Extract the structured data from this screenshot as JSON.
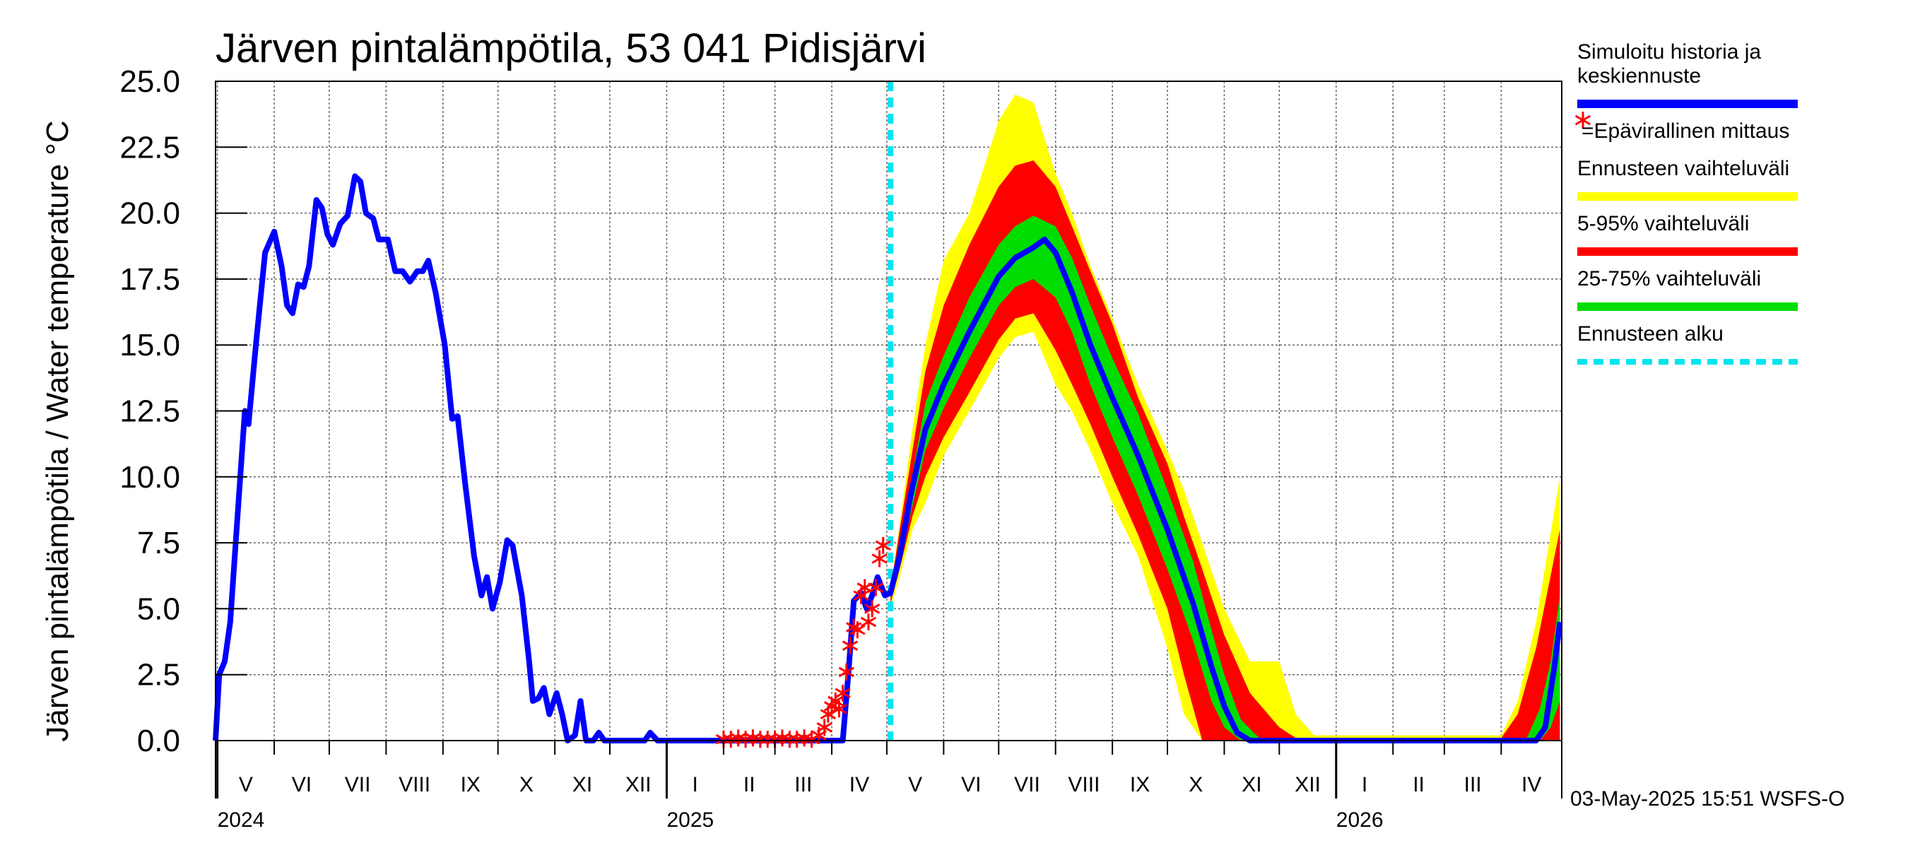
{
  "chart_data": {
    "type": "line",
    "title": "Järven pintalämpötila, 53 041 Pidisjärvi",
    "ylabel": "Järven pintalämpötila / Water temperature °C",
    "ylim": [
      0,
      25
    ],
    "yticks": [
      "0.0",
      "2.5",
      "5.0",
      "7.5",
      "10.0",
      "12.5",
      "15.0",
      "17.5",
      "20.0",
      "22.5",
      "25.0"
    ],
    "xlim": [
      "2024-04-30",
      "2026-05-04"
    ],
    "months": [
      {
        "label": "V",
        "start": "2024-05-01"
      },
      {
        "label": "VI",
        "start": "2024-06-01"
      },
      {
        "label": "VII",
        "start": "2024-07-01"
      },
      {
        "label": "VIII",
        "start": "2024-08-01"
      },
      {
        "label": "IX",
        "start": "2024-09-01"
      },
      {
        "label": "X",
        "start": "2024-10-01"
      },
      {
        "label": "XI",
        "start": "2024-11-01"
      },
      {
        "label": "XII",
        "start": "2024-12-01"
      },
      {
        "label": "I",
        "start": "2025-01-01"
      },
      {
        "label": "II",
        "start": "2025-02-01"
      },
      {
        "label": "III",
        "start": "2025-03-01"
      },
      {
        "label": "IV",
        "start": "2025-04-01"
      },
      {
        "label": "V",
        "start": "2025-05-01"
      },
      {
        "label": "VI",
        "start": "2025-06-01"
      },
      {
        "label": "VII",
        "start": "2025-07-01"
      },
      {
        "label": "VIII",
        "start": "2025-08-01"
      },
      {
        "label": "IX",
        "start": "2025-09-01"
      },
      {
        "label": "X",
        "start": "2025-10-01"
      },
      {
        "label": "XI",
        "start": "2025-11-01"
      },
      {
        "label": "XII",
        "start": "2025-12-01"
      },
      {
        "label": "I",
        "start": "2026-01-01"
      },
      {
        "label": "II",
        "start": "2026-02-01"
      },
      {
        "label": "III",
        "start": "2026-03-01"
      },
      {
        "label": "IV",
        "start": "2026-04-01"
      }
    ],
    "years": [
      {
        "label": "2024",
        "date": "2024-05-01"
      },
      {
        "label": "2025",
        "date": "2025-01-01"
      },
      {
        "label": "2026",
        "date": "2026-01-01"
      }
    ],
    "forecast_start": "2025-05-03",
    "series": [
      {
        "name": "Simuloitu historia ja keskiennuste",
        "color": "#0000ff",
        "points": [
          [
            "2024-04-30",
            0.0
          ],
          [
            "2024-05-02",
            2.5
          ],
          [
            "2024-05-05",
            3.0
          ],
          [
            "2024-05-08",
            4.5
          ],
          [
            "2024-05-12",
            8.5
          ],
          [
            "2024-05-16",
            12.5
          ],
          [
            "2024-05-18",
            12.0
          ],
          [
            "2024-05-22",
            15.0
          ],
          [
            "2024-05-27",
            18.5
          ],
          [
            "2024-06-01",
            19.3
          ],
          [
            "2024-06-05",
            18.0
          ],
          [
            "2024-06-08",
            16.5
          ],
          [
            "2024-06-11",
            16.2
          ],
          [
            "2024-06-14",
            17.3
          ],
          [
            "2024-06-17",
            17.2
          ],
          [
            "2024-06-20",
            18.0
          ],
          [
            "2024-06-24",
            20.5
          ],
          [
            "2024-06-27",
            20.2
          ],
          [
            "2024-06-30",
            19.2
          ],
          [
            "2024-07-03",
            18.8
          ],
          [
            "2024-07-07",
            19.6
          ],
          [
            "2024-07-11",
            19.9
          ],
          [
            "2024-07-15",
            21.4
          ],
          [
            "2024-07-18",
            21.2
          ],
          [
            "2024-07-21",
            20.0
          ],
          [
            "2024-07-25",
            19.8
          ],
          [
            "2024-07-28",
            19.0
          ],
          [
            "2024-08-02",
            19.0
          ],
          [
            "2024-08-06",
            17.8
          ],
          [
            "2024-08-10",
            17.8
          ],
          [
            "2024-08-14",
            17.4
          ],
          [
            "2024-08-18",
            17.8
          ],
          [
            "2024-08-21",
            17.8
          ],
          [
            "2024-08-24",
            18.2
          ],
          [
            "2024-08-28",
            17.0
          ],
          [
            "2024-09-02",
            15.0
          ],
          [
            "2024-09-06",
            12.2
          ],
          [
            "2024-09-09",
            12.3
          ],
          [
            "2024-09-13",
            9.8
          ],
          [
            "2024-09-18",
            7.0
          ],
          [
            "2024-09-22",
            5.5
          ],
          [
            "2024-09-25",
            6.2
          ],
          [
            "2024-09-28",
            5.0
          ],
          [
            "2024-10-02",
            6.0
          ],
          [
            "2024-10-06",
            7.6
          ],
          [
            "2024-10-09",
            7.4
          ],
          [
            "2024-10-14",
            5.5
          ],
          [
            "2024-10-18",
            3.0
          ],
          [
            "2024-10-20",
            1.5
          ],
          [
            "2024-10-23",
            1.6
          ],
          [
            "2024-10-26",
            2.0
          ],
          [
            "2024-10-29",
            1.0
          ],
          [
            "2024-11-02",
            1.8
          ],
          [
            "2024-11-05",
            1.0
          ],
          [
            "2024-11-08",
            0.0
          ],
          [
            "2024-11-12",
            0.2
          ],
          [
            "2024-11-15",
            1.5
          ],
          [
            "2024-11-18",
            0.0
          ],
          [
            "2024-11-22",
            0.0
          ],
          [
            "2024-11-25",
            0.3
          ],
          [
            "2024-11-28",
            0.0
          ],
          [
            "2024-12-20",
            0.0
          ],
          [
            "2024-12-23",
            0.3
          ],
          [
            "2024-12-27",
            0.0
          ],
          [
            "2025-04-07",
            0.0
          ],
          [
            "2025-04-10",
            2.5
          ],
          [
            "2025-04-13",
            5.3
          ],
          [
            "2025-04-17",
            5.6
          ],
          [
            "2025-04-20",
            5.0
          ],
          [
            "2025-04-23",
            5.5
          ],
          [
            "2025-04-26",
            6.2
          ],
          [
            "2025-04-30",
            5.5
          ],
          [
            "2025-05-03",
            5.6
          ],
          [
            "2025-05-08",
            7.0
          ],
          [
            "2025-05-14",
            9.3
          ],
          [
            "2025-05-22",
            11.8
          ],
          [
            "2025-06-01",
            13.5
          ],
          [
            "2025-06-15",
            15.5
          ],
          [
            "2025-07-01",
            17.6
          ],
          [
            "2025-07-10",
            18.3
          ],
          [
            "2025-07-20",
            18.7
          ],
          [
            "2025-07-26",
            19.0
          ],
          [
            "2025-08-01",
            18.5
          ],
          [
            "2025-08-10",
            17.0
          ],
          [
            "2025-08-20",
            15.0
          ],
          [
            "2025-09-01",
            13.0
          ],
          [
            "2025-09-15",
            10.8
          ],
          [
            "2025-10-01",
            8.0
          ],
          [
            "2025-10-15",
            5.2
          ],
          [
            "2025-10-25",
            2.8
          ],
          [
            "2025-11-01",
            1.3
          ],
          [
            "2025-11-08",
            0.3
          ],
          [
            "2025-11-15",
            0.0
          ],
          [
            "2026-04-20",
            0.0
          ],
          [
            "2026-04-25",
            0.5
          ],
          [
            "2026-04-30",
            2.8
          ],
          [
            "2026-05-03",
            4.5
          ]
        ]
      },
      {
        "name": "=Epävirallinen mittaus",
        "color": "#ff0000",
        "points": [
          [
            "2025-02-01",
            0.05
          ],
          [
            "2025-02-05",
            0.05
          ],
          [
            "2025-02-09",
            0.1
          ],
          [
            "2025-02-13",
            0.05
          ],
          [
            "2025-02-17",
            0.1
          ],
          [
            "2025-02-21",
            0.05
          ],
          [
            "2025-02-25",
            0.05
          ],
          [
            "2025-03-01",
            0.05
          ],
          [
            "2025-03-05",
            0.1
          ],
          [
            "2025-03-09",
            0.05
          ],
          [
            "2025-03-13",
            0.05
          ],
          [
            "2025-03-17",
            0.1
          ],
          [
            "2025-03-21",
            0.05
          ],
          [
            "2025-03-25",
            0.2
          ],
          [
            "2025-03-28",
            0.5
          ],
          [
            "2025-03-30",
            1.0
          ],
          [
            "2025-04-01",
            1.3
          ],
          [
            "2025-04-03",
            1.5
          ],
          [
            "2025-04-05",
            1.2
          ],
          [
            "2025-04-07",
            1.8
          ],
          [
            "2025-04-09",
            2.6
          ],
          [
            "2025-04-11",
            3.6
          ],
          [
            "2025-04-13",
            4.3
          ],
          [
            "2025-04-15",
            4.2
          ],
          [
            "2025-04-17",
            5.5
          ],
          [
            "2025-04-19",
            5.8
          ],
          [
            "2025-04-21",
            4.5
          ],
          [
            "2025-04-23",
            5.0
          ],
          [
            "2025-04-25",
            5.8
          ],
          [
            "2025-04-27",
            6.9
          ],
          [
            "2025-04-29",
            7.4
          ]
        ]
      }
    ],
    "bands": [
      {
        "name": "Ennusteen vaihteluväli",
        "color": "#ffff00",
        "points": [
          [
            "2025-05-03",
            5.0,
            5.8
          ],
          [
            "2025-05-08",
            6.2,
            8.2
          ],
          [
            "2025-05-15",
            8.0,
            11.8
          ],
          [
            "2025-05-22",
            9.0,
            15.0
          ],
          [
            "2025-06-01",
            10.8,
            18.2
          ],
          [
            "2025-06-15",
            12.5,
            20.0
          ],
          [
            "2025-07-01",
            14.5,
            23.5
          ],
          [
            "2025-07-10",
            15.3,
            24.5
          ],
          [
            "2025-07-20",
            15.5,
            24.2
          ],
          [
            "2025-08-01",
            13.5,
            21.5
          ],
          [
            "2025-08-10",
            12.5,
            20.0
          ],
          [
            "2025-08-20",
            11.0,
            18.0
          ],
          [
            "2025-09-01",
            9.0,
            16.0
          ],
          [
            "2025-09-15",
            7.0,
            13.5
          ],
          [
            "2025-10-01",
            3.5,
            11.0
          ],
          [
            "2025-10-10",
            1.0,
            9.5
          ],
          [
            "2025-10-20",
            0.0,
            7.5
          ],
          [
            "2025-11-01",
            0.0,
            5.0
          ],
          [
            "2025-11-15",
            0.0,
            3.0
          ],
          [
            "2025-12-01",
            0.0,
            3.0
          ],
          [
            "2025-12-10",
            0.0,
            1.0
          ],
          [
            "2025-12-20",
            0.0,
            0.2
          ],
          [
            "2026-04-01",
            0.0,
            0.2
          ],
          [
            "2026-04-10",
            0.0,
            1.5
          ],
          [
            "2026-04-20",
            0.0,
            4.5
          ],
          [
            "2026-05-03",
            0.0,
            10.0
          ]
        ]
      },
      {
        "name": "5-95% vaihteluväli",
        "color": "#ff0000",
        "points": [
          [
            "2025-05-03",
            5.2,
            5.7
          ],
          [
            "2025-05-08",
            6.5,
            8.0
          ],
          [
            "2025-05-15",
            8.5,
            11.0
          ],
          [
            "2025-05-22",
            10.0,
            14.0
          ],
          [
            "2025-06-01",
            11.5,
            16.5
          ],
          [
            "2025-06-15",
            13.2,
            18.8
          ],
          [
            "2025-07-01",
            15.2,
            21.0
          ],
          [
            "2025-07-10",
            16.0,
            21.8
          ],
          [
            "2025-07-20",
            16.2,
            22.0
          ],
          [
            "2025-08-01",
            14.8,
            21.0
          ],
          [
            "2025-08-10",
            13.5,
            19.5
          ],
          [
            "2025-08-20",
            12.0,
            17.8
          ],
          [
            "2025-09-01",
            10.0,
            15.8
          ],
          [
            "2025-09-15",
            7.8,
            13.0
          ],
          [
            "2025-10-01",
            5.0,
            10.5
          ],
          [
            "2025-10-10",
            2.5,
            8.5
          ],
          [
            "2025-10-20",
            0.0,
            6.5
          ],
          [
            "2025-11-01",
            0.0,
            4.0
          ],
          [
            "2025-11-15",
            0.0,
            1.8
          ],
          [
            "2025-12-01",
            0.0,
            0.5
          ],
          [
            "2025-12-10",
            0.0,
            0.1
          ],
          [
            "2026-04-01",
            0.0,
            0.1
          ],
          [
            "2026-04-10",
            0.0,
            1.0
          ],
          [
            "2026-04-20",
            0.0,
            3.5
          ],
          [
            "2026-05-03",
            0.0,
            8.0
          ]
        ]
      },
      {
        "name": "25-75% vaihteluväli",
        "color": "#00dd00",
        "points": [
          [
            "2025-05-03",
            5.4,
            5.7
          ],
          [
            "2025-05-08",
            6.8,
            7.6
          ],
          [
            "2025-05-15",
            8.9,
            10.1
          ],
          [
            "2025-05-22",
            11.0,
            12.8
          ],
          [
            "2025-06-01",
            12.6,
            14.6
          ],
          [
            "2025-06-15",
            14.5,
            16.8
          ],
          [
            "2025-07-01",
            16.5,
            18.8
          ],
          [
            "2025-07-10",
            17.2,
            19.5
          ],
          [
            "2025-07-20",
            17.5,
            19.9
          ],
          [
            "2025-08-01",
            16.8,
            19.5
          ],
          [
            "2025-08-10",
            15.5,
            18.3
          ],
          [
            "2025-08-20",
            13.5,
            16.5
          ],
          [
            "2025-09-01",
            11.5,
            14.5
          ],
          [
            "2025-09-15",
            9.3,
            12.4
          ],
          [
            "2025-10-01",
            6.5,
            9.5
          ],
          [
            "2025-10-15",
            3.8,
            6.8
          ],
          [
            "2025-10-25",
            1.5,
            4.2
          ],
          [
            "2025-11-01",
            0.5,
            2.5
          ],
          [
            "2025-11-10",
            0.0,
            0.8
          ],
          [
            "2025-11-20",
            0.0,
            0.1
          ],
          [
            "2026-04-15",
            0.0,
            0.1
          ],
          [
            "2026-04-22",
            0.0,
            1.2
          ],
          [
            "2026-04-28",
            0.5,
            3.0
          ],
          [
            "2026-05-03",
            1.5,
            5.5
          ]
        ]
      }
    ],
    "legend": [
      {
        "label": "Simuloitu historia ja keskiennuste",
        "lines": [
          "Simuloitu historia ja",
          "keskiennuste"
        ],
        "color": "#0000ff",
        "style": "line"
      },
      {
        "label": "=Epävirallinen mittaus",
        "lines": [
          "=Epävirallinen mittaus"
        ],
        "color": "#ff0000",
        "style": "star"
      },
      {
        "label": "Ennusteen vaihteluväli",
        "lines": [
          "Ennusteen vaihteluväli"
        ],
        "color": "#ffff00",
        "style": "line"
      },
      {
        "label": "5-95% vaihteluväli",
        "lines": [
          "5-95% vaihteluväli"
        ],
        "color": "#ff0000",
        "style": "line"
      },
      {
        "label": "25-75% vaihteluväli",
        "lines": [
          "25-75% vaihteluväli"
        ],
        "color": "#00dd00",
        "style": "line"
      },
      {
        "label": "Ennusteen alku",
        "lines": [
          "Ennusteen alku"
        ],
        "color": "#00e5ee",
        "style": "dashed"
      }
    ],
    "legend_position": "right",
    "grid": true,
    "footer": "03-May-2025 15:51 WSFS-O"
  }
}
